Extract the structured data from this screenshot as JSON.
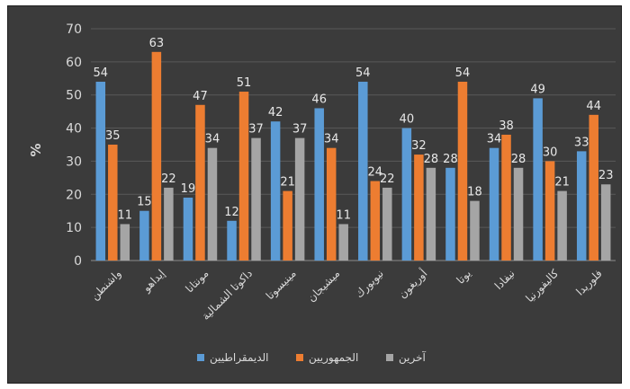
{
  "chart_data": {
    "type": "bar",
    "title": "",
    "xlabel": "",
    "ylabel": "%",
    "ylim": [
      0,
      70
    ],
    "yticks": [
      0,
      10,
      20,
      30,
      40,
      50,
      60,
      70
    ],
    "grid": true,
    "legend_position": "bottom",
    "categories": [
      "واشنطن",
      "إيداهو",
      "مونتانا",
      "داكوتا الشمالية",
      "مينيسوتا",
      "ميشيجان",
      "نيويورك",
      "أوريغون",
      "يوتا",
      "نيفادا",
      "كاليفورنيا",
      "فلوريدا"
    ],
    "series": [
      {
        "name": "الديمقراطيين",
        "color": "#5b9bd5",
        "values": [
          54,
          15,
          19,
          12,
          42,
          46,
          54,
          40,
          28,
          34,
          49,
          33
        ]
      },
      {
        "name": "الجمهوريين",
        "color": "#ed7d31",
        "values": [
          35,
          63,
          47,
          51,
          21,
          34,
          24,
          32,
          54,
          38,
          30,
          44
        ]
      },
      {
        "name": "آخرين",
        "color": "#a5a5a5",
        "values": [
          11,
          22,
          34,
          37,
          37,
          11,
          22,
          28,
          18,
          28,
          21,
          23
        ]
      }
    ]
  }
}
